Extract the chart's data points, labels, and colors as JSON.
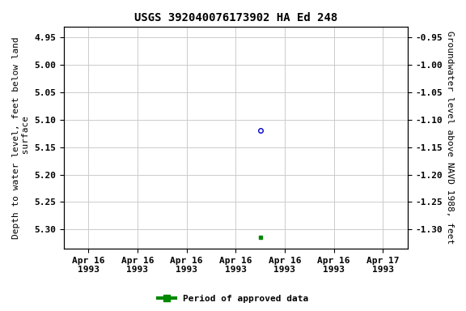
{
  "title": "USGS 392040076173902 HA Ed 248",
  "left_ylabel": "Depth to water level, feet below land\n surface",
  "right_ylabel": "Groundwater level above NAVD 1988, feet",
  "ylim_left": [
    4.93,
    5.335
  ],
  "ylim_right": [
    -0.93,
    -1.335
  ],
  "y_ticks_left": [
    4.95,
    5.0,
    5.05,
    5.1,
    5.15,
    5.2,
    5.25,
    5.3
  ],
  "y_ticks_right": [
    -0.95,
    -1.0,
    -1.05,
    -1.1,
    -1.15,
    -1.2,
    -1.25,
    -1.3
  ],
  "point_open_x": 4.0,
  "point_open_y": 5.12,
  "point_open_color": "#0000cc",
  "point_filled_x": 4.0,
  "point_filled_y": 5.315,
  "point_filled_color": "#008800",
  "xlim": [
    0.0,
    7.0
  ],
  "x_ticks": [
    0.5,
    1.5,
    2.5,
    3.5,
    4.5,
    5.5,
    6.5
  ],
  "x_tick_labels": [
    "Apr 16\n1993",
    "Apr 16\n1993",
    "Apr 16\n1993",
    "Apr 16\n1993",
    "Apr 16\n1993",
    "Apr 16\n1993",
    "Apr 17\n1993"
  ],
  "grid_color": "#cccccc",
  "background_color": "#ffffff",
  "legend_label": "Period of approved data",
  "legend_color": "#008800",
  "title_fontsize": 10,
  "label_fontsize": 8,
  "tick_fontsize": 8
}
